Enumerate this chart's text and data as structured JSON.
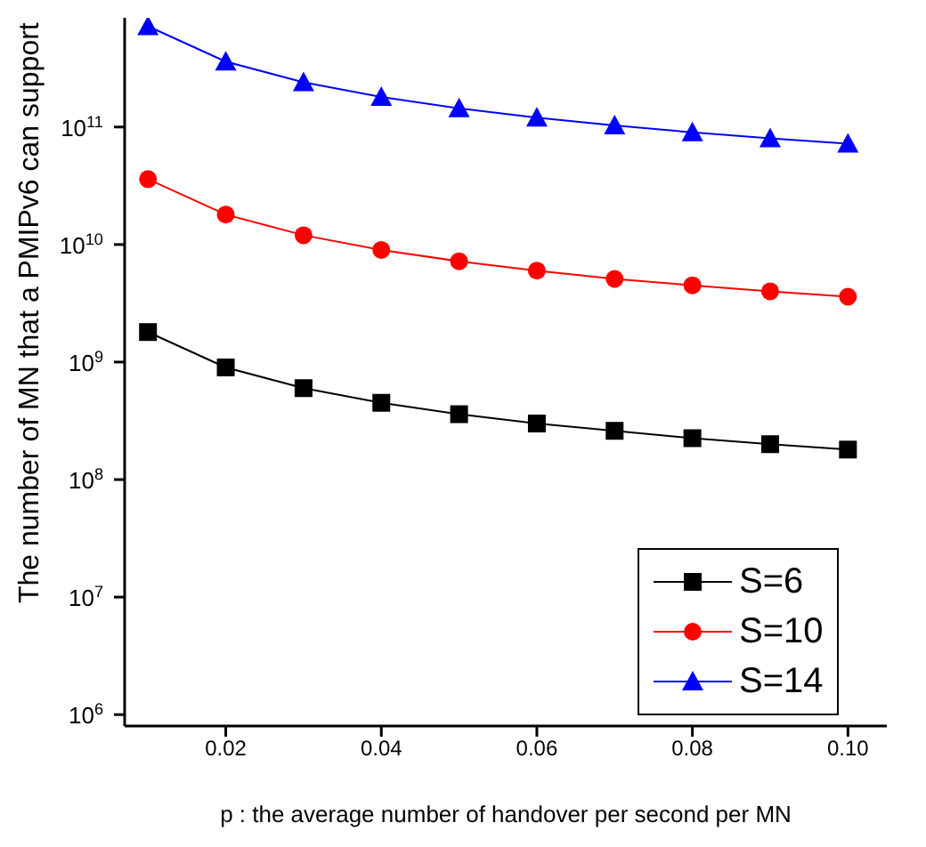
{
  "chart_data": {
    "type": "line",
    "xlabel": "p : the average number of handover per second per MN",
    "ylabel": "The number of MN that a PMIPv6 can support",
    "x": [
      0.01,
      0.02,
      0.03,
      0.04,
      0.05,
      0.06,
      0.07,
      0.08,
      0.09,
      0.1
    ],
    "series": [
      {
        "name": "S=6",
        "color": "#000000",
        "marker": "square",
        "values": [
          1800000000.0,
          900000000.0,
          600000000.0,
          450000000.0,
          360000000.0,
          300000000.0,
          260000000.0,
          225000000.0,
          200000000.0,
          180000000.0
        ]
      },
      {
        "name": "S=10",
        "color": "#ff0000",
        "marker": "circle",
        "values": [
          36000000000.0,
          18000000000.0,
          12000000000.0,
          9000000000.0,
          7200000000.0,
          6000000000.0,
          5100000000.0,
          4500000000.0,
          4000000000.0,
          3600000000.0
        ]
      },
      {
        "name": "S=14",
        "color": "#0000ff",
        "marker": "triangle",
        "values": [
          720000000000.0,
          360000000000.0,
          240000000000.0,
          180000000000.0,
          144000000000.0,
          120000000000.0,
          103000000000.0,
          90000000000.0,
          80000000000.0,
          72000000000.0
        ]
      }
    ],
    "log": "y",
    "xlim": [
      0.007,
      0.105
    ],
    "xticks": [
      {
        "value": 0.02,
        "label": "0.02"
      },
      {
        "value": 0.04,
        "label": "0.04"
      },
      {
        "value": 0.06,
        "label": "0.06"
      },
      {
        "value": 0.08,
        "label": "0.08"
      },
      {
        "value": 0.1,
        "label": "0.10"
      }
    ],
    "ylim": [
      800000.0,
      850000000000.0
    ],
    "yticks": [
      {
        "value": 1000000.0,
        "label": "10$^{6}$"
      },
      {
        "value": 10000000.0,
        "label": "10$^{7}$"
      },
      {
        "value": 100000000.0,
        "label": "10$^{8}$"
      },
      {
        "value": 1000000000.0,
        "label": "10$^{9}$"
      },
      {
        "value": 10000000000.0,
        "label": "10$^{10}$"
      },
      {
        "value": 100000000000.0,
        "label": "10$^{11}$"
      }
    ],
    "grid": false,
    "legend": "bottom right",
    "line_style": "solid"
  }
}
